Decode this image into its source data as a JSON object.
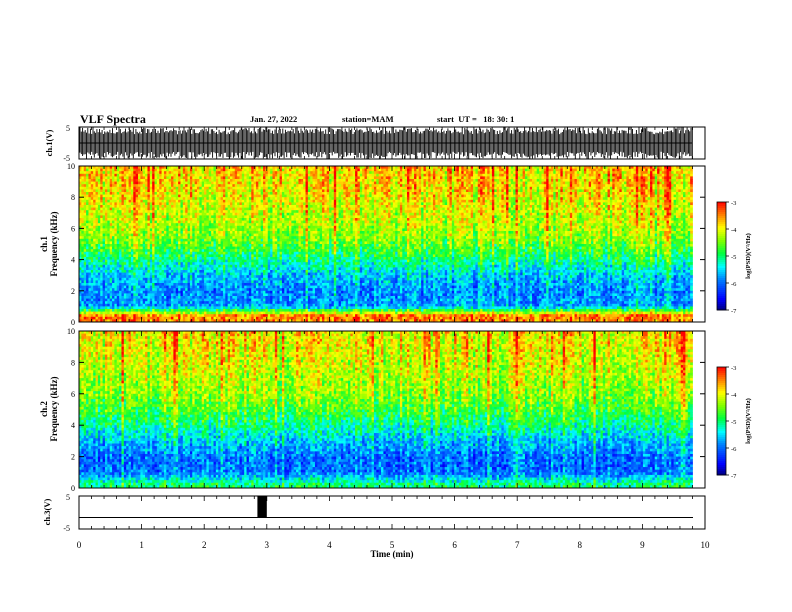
{
  "header": {
    "title": "VLF Spectra",
    "date": "Jan. 27, 2022",
    "station": "station=MAM",
    "start": "start  UT =   18: 30: 1"
  },
  "colorbar": {
    "label": "log(PSD)(V²/Hz)",
    "ticks": [
      "-3",
      "-4",
      "-5",
      "-6",
      "-7"
    ],
    "range": [
      -7,
      -3
    ],
    "colors": [
      "#000080",
      "#0000ff",
      "#0080ff",
      "#00ffff",
      "#00ff40",
      "#80ff00",
      "#ffff00",
      "#ff8000",
      "#ff0000",
      "#ffffff"
    ]
  },
  "chart_data": [
    {
      "type": "line",
      "ylabel": "ch.1(V)",
      "ylim": [
        -5,
        5
      ],
      "yticks": [
        "5",
        "-5"
      ],
      "xlim": [
        0,
        10
      ],
      "note": "dense vertical impulse bursts across 0–9.8 min"
    },
    {
      "type": "heatmap",
      "ylabel_channel": "ch.1",
      "ylabel": "Frequency (kHz)",
      "xlim": [
        0,
        10
      ],
      "ylim": [
        0,
        10
      ],
      "yticks": [
        "10",
        "8",
        "6",
        "4",
        "2",
        "0"
      ],
      "data_end_min": 9.8,
      "profile_log_psd": [
        {
          "freq_khz": 0.4,
          "log_psd": -3.5
        },
        {
          "freq_khz": 1.0,
          "log_psd": -5.8
        },
        {
          "freq_khz": 2.0,
          "log_psd": -5.9
        },
        {
          "freq_khz": 3.0,
          "log_psd": -5.6
        },
        {
          "freq_khz": 4.0,
          "log_psd": -5.1
        },
        {
          "freq_khz": 5.0,
          "log_psd": -4.6
        },
        {
          "freq_khz": 6.0,
          "log_psd": -4.3
        },
        {
          "freq_khz": 8.0,
          "log_psd": -4.0
        },
        {
          "freq_khz": 10.0,
          "log_psd": -3.8
        }
      ]
    },
    {
      "type": "heatmap",
      "ylabel_channel": "ch.2",
      "ylabel": "Frequency (kHz)",
      "xlim": [
        0,
        10
      ],
      "ylim": [
        0,
        10
      ],
      "yticks": [
        "10",
        "8",
        "6",
        "4",
        "2",
        "0"
      ],
      "data_end_min": 9.8,
      "profile_log_psd": [
        {
          "freq_khz": 0.2,
          "log_psd": -5.0
        },
        {
          "freq_khz": 1.0,
          "log_psd": -6.0
        },
        {
          "freq_khz": 2.0,
          "log_psd": -6.0
        },
        {
          "freq_khz": 3.0,
          "log_psd": -5.6
        },
        {
          "freq_khz": 4.0,
          "log_psd": -5.1
        },
        {
          "freq_khz": 5.0,
          "log_psd": -4.7
        },
        {
          "freq_khz": 6.0,
          "log_psd": -4.4
        },
        {
          "freq_khz": 8.0,
          "log_psd": -4.1
        },
        {
          "freq_khz": 10.0,
          "log_psd": -3.9
        }
      ]
    },
    {
      "type": "line",
      "ylabel": "ch.3(V)",
      "ylim": [
        -5,
        5
      ],
      "yticks": [
        "5",
        "-5"
      ],
      "xlim": [
        0,
        10
      ],
      "baseline_v": -1.5,
      "pulse": {
        "start_min": 2.85,
        "end_min": 3.0,
        "low_v": -1.5,
        "high_v": 5
      }
    }
  ],
  "xaxis": {
    "label": "Time (min)",
    "ticks": [
      "0",
      "1",
      "2",
      "3",
      "4",
      "5",
      "6",
      "7",
      "8",
      "9",
      "10"
    ]
  }
}
